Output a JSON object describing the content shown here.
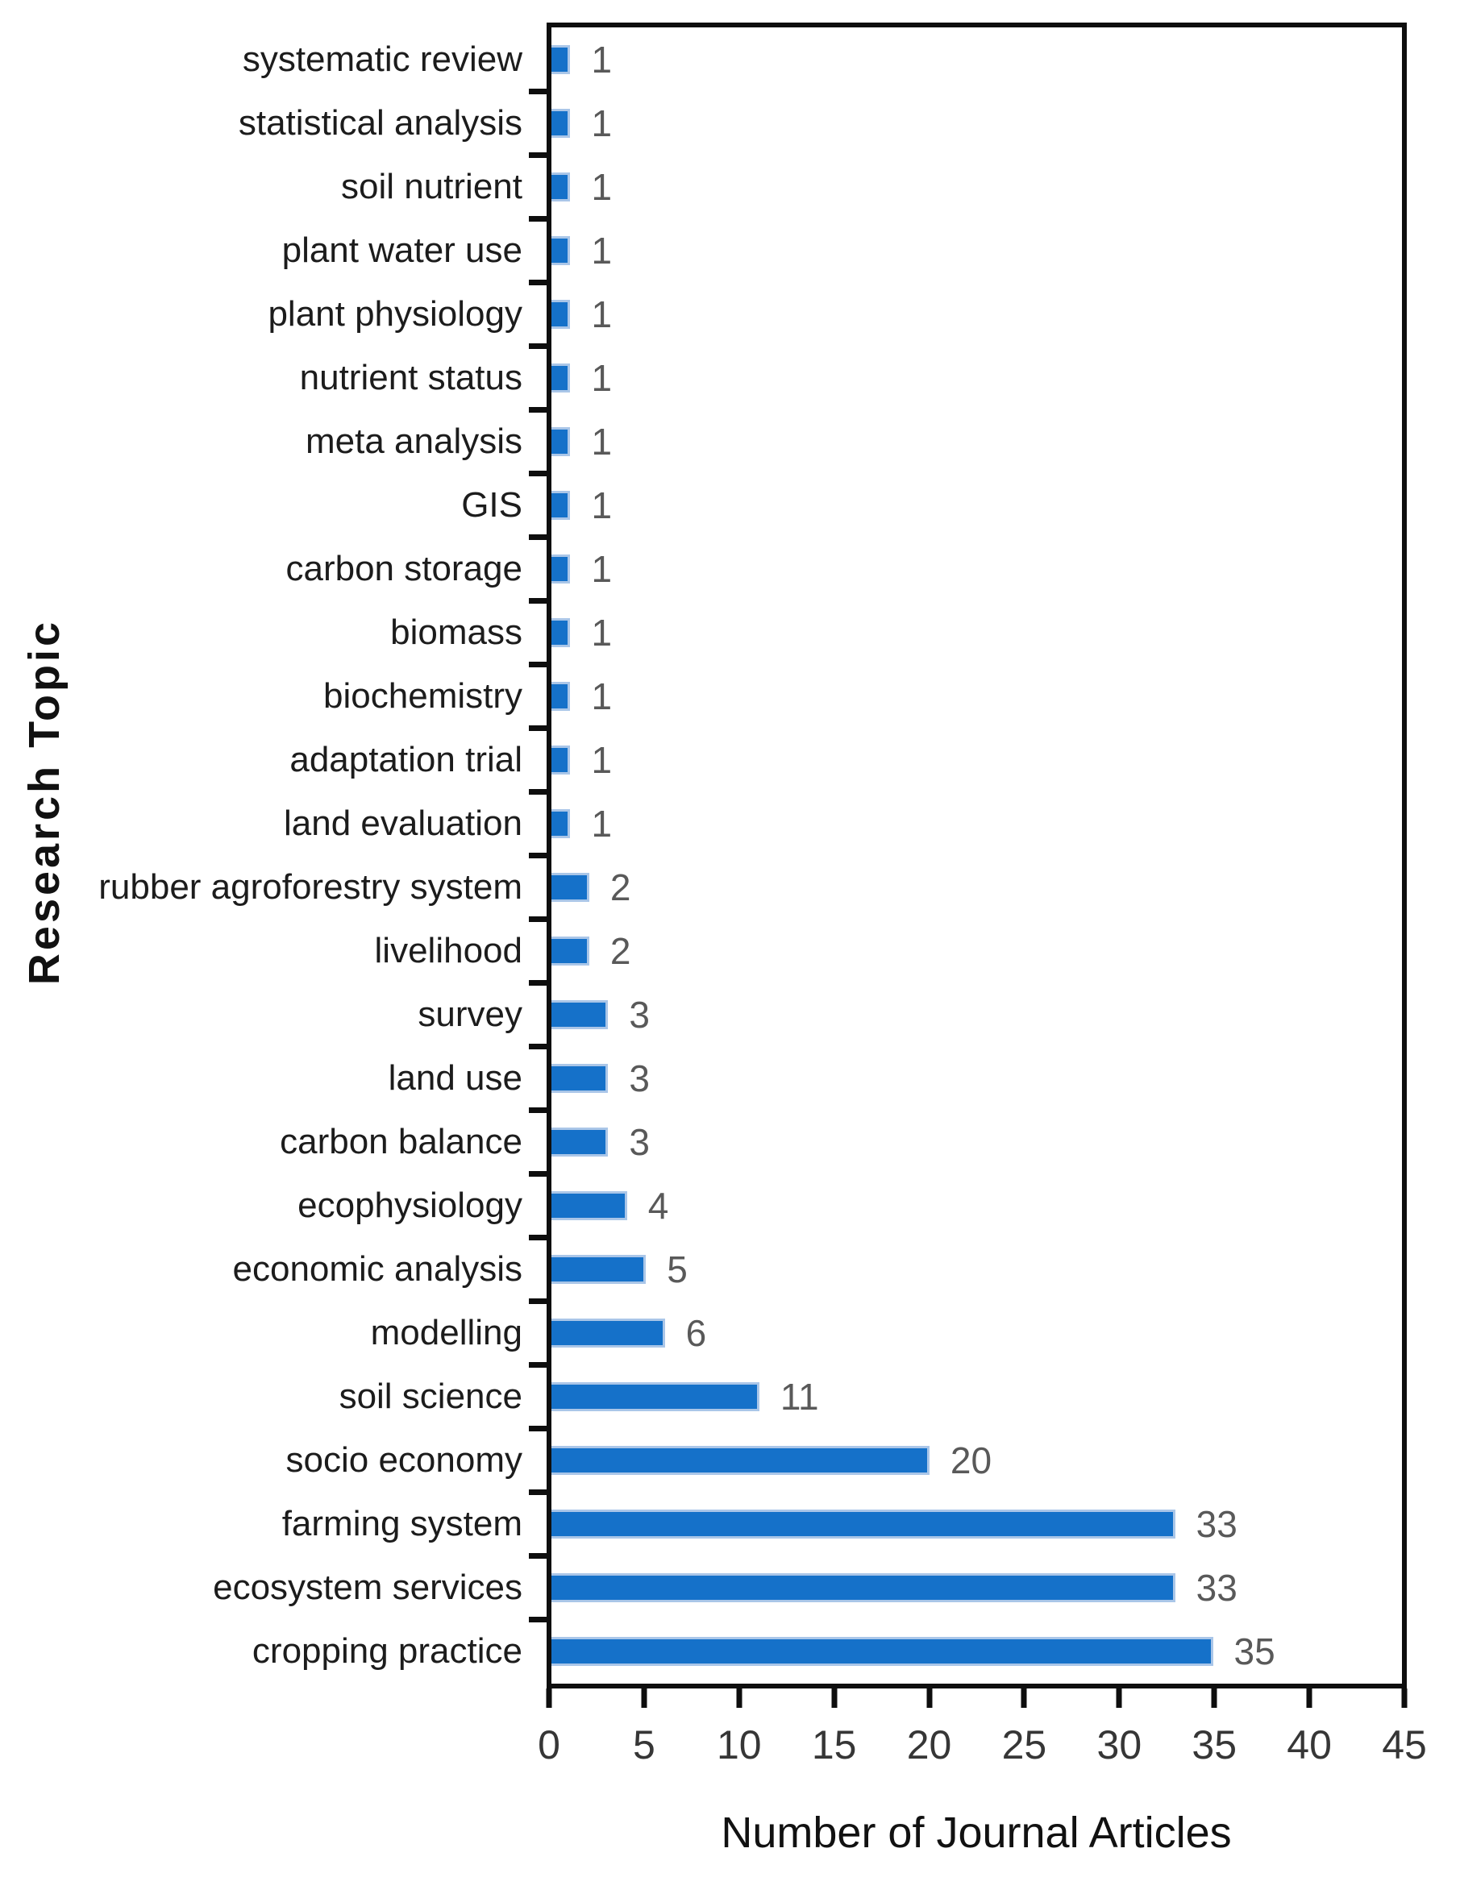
{
  "chart_data": {
    "type": "bar",
    "orientation": "horizontal",
    "title": "",
    "xlabel": "Number of Journal Articles",
    "ylabel": "Research Topic",
    "xlim": [
      0,
      45
    ],
    "xticks": [
      0,
      5,
      10,
      15,
      20,
      25,
      30,
      35,
      40,
      45
    ],
    "grid": false,
    "legend": "none",
    "categories": [
      "systematic review",
      "statistical analysis",
      "soil nutrient",
      "plant water use",
      "plant physiology",
      "nutrient status",
      "meta analysis",
      "GIS",
      "carbon storage",
      "biomass",
      "biochemistry",
      "adaptation trial",
      "land evaluation",
      "rubber agroforestry system",
      "livelihood",
      "survey",
      "land use",
      "carbon balance",
      "ecophysiology",
      "economic analysis",
      "modelling",
      "soil science",
      "socio economy",
      "farming system",
      "ecosystem services",
      "cropping practice"
    ],
    "values": [
      1,
      1,
      1,
      1,
      1,
      1,
      1,
      1,
      1,
      1,
      1,
      1,
      1,
      2,
      2,
      3,
      3,
      3,
      4,
      5,
      6,
      11,
      20,
      33,
      33,
      35
    ],
    "colors": {
      "bar_fill": "#1571c9",
      "bar_edge": "#aac6e8",
      "data_label": "#595959",
      "category_label": "#1c1c1c",
      "axis": "#0e0e0e",
      "tick_label": "#363636",
      "background": "#ffffff"
    }
  }
}
